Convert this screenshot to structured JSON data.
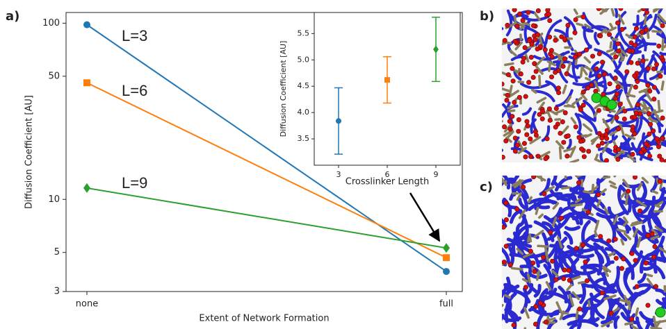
{
  "panel_labels": {
    "a": "a)",
    "b": "b)",
    "c": "c)"
  },
  "chart_data": [
    {
      "type": "line",
      "x_label": "Extent of Network Formation",
      "y_label": "Diffusion Coefficient [AU]",
      "categories": [
        "none",
        "full"
      ],
      "series": [
        {
          "name": "L=3",
          "color": "#1f77b4",
          "marker": "circle",
          "values": [
            98,
            3.9
          ]
        },
        {
          "name": "L=6",
          "color": "#ff7f0e",
          "marker": "square",
          "values": [
            45.9,
            4.67
          ]
        },
        {
          "name": "L=9",
          "color": "#2ca02c",
          "marker": "diamond",
          "values": [
            11.6,
            5.3
          ]
        }
      ],
      "ylim": [
        3,
        115
      ],
      "yticks": [
        3,
        5,
        10,
        50,
        100
      ],
      "log_y": true,
      "grid": false
    },
    {
      "type": "errorbar",
      "x_label": "Crosslinker Length",
      "y_label": "Diffusion Coefficient [AU]",
      "x": [
        3,
        6,
        9
      ],
      "values": [
        3.84,
        4.62,
        5.2
      ],
      "errors": [
        0.63,
        0.44,
        0.61
      ],
      "colors": [
        "#1f77b4",
        "#ff7f0e",
        "#2ca02c"
      ],
      "markers": [
        "circle",
        "square",
        "diamond"
      ],
      "xlim": [
        1.5,
        10.5
      ],
      "xticks": [
        3,
        6,
        9
      ],
      "ylim": [
        3.0,
        5.9
      ],
      "yticks": [
        3.5,
        {
          "value": 4,
          "label": "4.0"
        },
        4.5,
        {
          "value": 5,
          "label": "5.0"
        },
        5.5
      ],
      "grid": false
    }
  ]
}
